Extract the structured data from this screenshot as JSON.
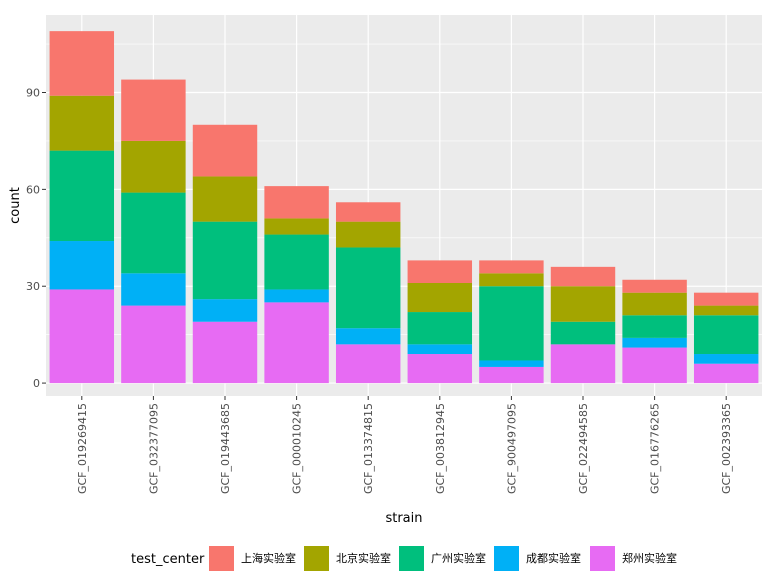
{
  "chart_data": {
    "type": "bar",
    "stacked": true,
    "xlabel": "strain",
    "ylabel": "count",
    "ylim": [
      -4,
      114
    ],
    "yticks": [
      0,
      30,
      60,
      90
    ],
    "grid": true,
    "legend_placement": "bottom",
    "legend_title": "test_center",
    "categories": [
      "GCF_019269415",
      "GCF_032377095",
      "GCF_019443685",
      "GCF_000010245",
      "GCF_013374815",
      "GCF_003812945",
      "GCF_900497095",
      "GCF_022494585",
      "GCF_016776265",
      "GCF_002393365"
    ],
    "series": [
      {
        "name": "上海实验室",
        "color": "#F8766D",
        "values": [
          20,
          19,
          16,
          10,
          6,
          7,
          4,
          6,
          4,
          4
        ]
      },
      {
        "name": "北京实验室",
        "color": "#A3A500",
        "values": [
          17,
          16,
          14,
          5,
          8,
          9,
          4,
          11,
          7,
          3
        ]
      },
      {
        "name": "广州实验室",
        "color": "#00BF7D",
        "values": [
          28,
          25,
          24,
          17,
          25,
          10,
          23,
          7,
          7,
          12
        ]
      },
      {
        "name": "成都实验室",
        "color": "#00B0F6",
        "values": [
          15,
          10,
          7,
          4,
          5,
          3,
          2,
          0,
          3,
          3
        ]
      },
      {
        "name": "郑州实验室",
        "color": "#E76BF3",
        "values": [
          29,
          24,
          19,
          25,
          12,
          9,
          5,
          12,
          11,
          6
        ]
      }
    ]
  }
}
